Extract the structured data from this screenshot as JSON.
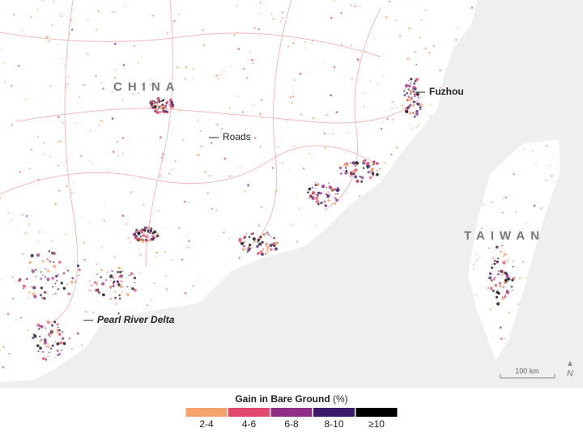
{
  "map": {
    "labels": {
      "country": "CHINA",
      "city": "Fuzhou",
      "roads": "Roads",
      "island": "TAIWAN",
      "delta": "Pearl River Delta"
    },
    "scale_bar": "100 km",
    "north": "N",
    "legend": {
      "title": "Gain in Bare Ground",
      "unit": "(%)",
      "items": [
        {
          "label": "2-4",
          "color": "#f6a26b"
        },
        {
          "label": "4-6",
          "color": "#e0496a"
        },
        {
          "label": "6-8",
          "color": "#8f2f86"
        },
        {
          "label": "8-10",
          "color": "#3b1a6b"
        },
        {
          "label": "≥10",
          "color": "#000000"
        }
      ]
    }
  }
}
